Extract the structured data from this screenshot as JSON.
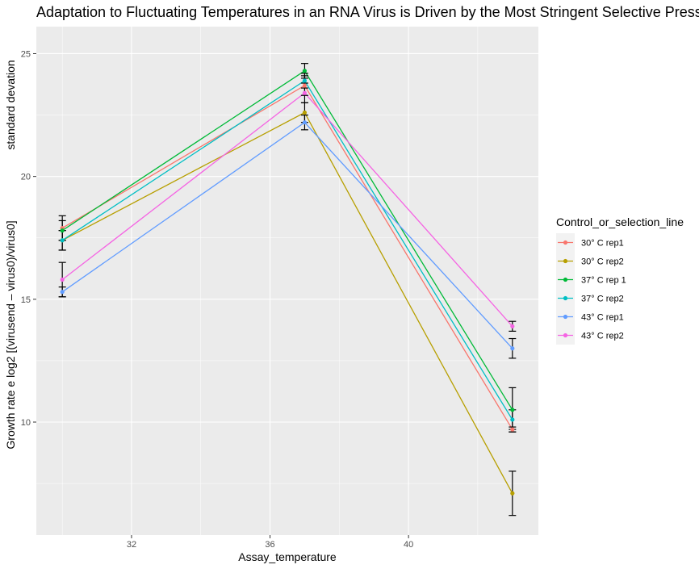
{
  "chart_data": {
    "type": "line",
    "title": "Adaptation to Fluctuating Temperatures in an RNA Virus is Driven by the Most Stringent Selective Pressure",
    "xlabel": "Assay_temperature",
    "ylabel_line1": "standard devation",
    "ylabel_line2": "Growth rate e log2 [(virusend – virus0)/virus0]",
    "x": [
      30,
      37,
      43
    ],
    "xlim": [
      29.25,
      43.75
    ],
    "ylim": [
      5.4,
      26.1
    ],
    "xticks": [
      32,
      36,
      40
    ],
    "xtick_labels": [
      "32",
      "36",
      "40"
    ],
    "yticks": [
      10,
      15,
      20,
      25
    ],
    "ytick_labels": [
      "10",
      "15",
      "20",
      "25"
    ],
    "grid": true,
    "panel_background": "#EBEBEB",
    "legend": {
      "title": "Control_or_selection_line",
      "position": "right"
    },
    "series": [
      {
        "name": "30° C rep1",
        "color": "#F8766D",
        "values": [
          17.9,
          23.7,
          9.7
        ],
        "errors": [
          0.5,
          0.4,
          0.1
        ]
      },
      {
        "name": "30° C rep2",
        "color": "#B79F00",
        "values": [
          17.4,
          22.6,
          7.1
        ],
        "errors": [
          0.4,
          0.4,
          0.9
        ]
      },
      {
        "name": "37° C rep 1",
        "color": "#00BA38",
        "values": [
          17.8,
          24.3,
          10.5
        ],
        "errors": [
          0.4,
          0.3,
          0.9
        ]
      },
      {
        "name": "37° C rep2",
        "color": "#00BFC4",
        "values": [
          17.4,
          23.9,
          10.1
        ],
        "errors": [
          0.4,
          0.3,
          0.4
        ]
      },
      {
        "name": "43° C rep1",
        "color": "#619CFF",
        "values": [
          15.3,
          22.2,
          13.0
        ],
        "errors": [
          0.2,
          0.3,
          0.4
        ]
      },
      {
        "name": "43° C rep2",
        "color": "#F564E3",
        "values": [
          15.8,
          23.4,
          13.9
        ],
        "errors": [
          0.7,
          0.4,
          0.2
        ]
      }
    ]
  }
}
